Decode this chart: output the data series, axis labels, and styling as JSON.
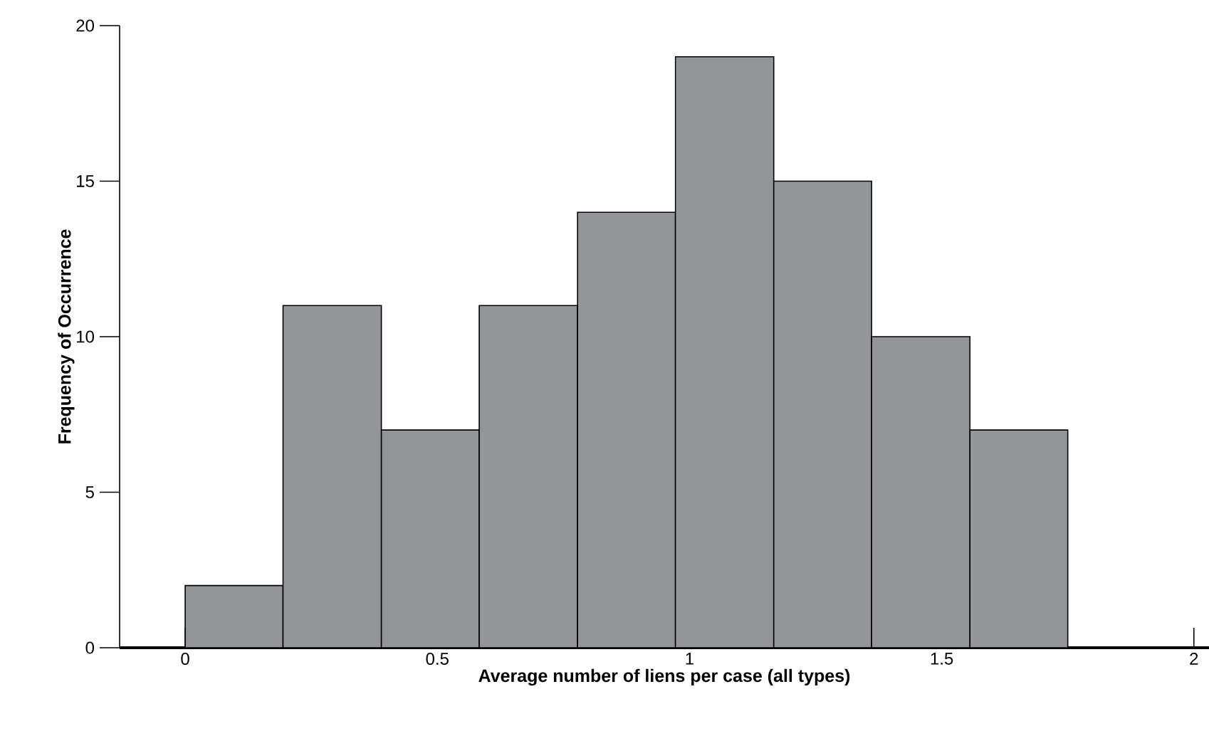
{
  "chart_data": {
    "type": "histogram",
    "xlabel": "Average number of liens per case (all types)",
    "ylabel": "Frequency of Occurrence",
    "bins": [
      0,
      0.194,
      0.389,
      0.583,
      0.778,
      0.972,
      1.167,
      1.361,
      1.556,
      1.75
    ],
    "values": [
      2,
      11,
      7,
      11,
      14,
      19,
      15,
      10,
      7
    ],
    "color": "#939598",
    "xlim": [
      -0.13,
      2.03
    ],
    "ylim": [
      0,
      20
    ],
    "xticks": [
      0,
      0.5,
      1,
      1.5,
      2
    ],
    "yticks": [
      0,
      5,
      10,
      15,
      20
    ],
    "grid": false
  }
}
